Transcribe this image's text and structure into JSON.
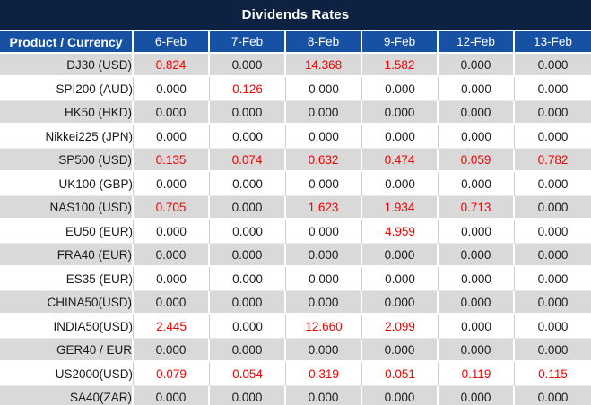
{
  "title_bar": {
    "title": "Dividends Rates"
  },
  "chart_data": {
    "type": "table",
    "title": "Dividends Rates",
    "columns": [
      "Product / Currency",
      "6-Feb",
      "7-Feb",
      "8-Feb",
      "9-Feb",
      "12-Feb",
      "13-Feb"
    ],
    "rows": [
      {
        "product": "DJ30 (USD)",
        "values": [
          "0.824",
          "0.000",
          "14.368",
          "1.582",
          "0.000",
          "0.000"
        ]
      },
      {
        "product": "SPI200 (AUD)",
        "values": [
          "0.000",
          "0.126",
          "0.000",
          "0.000",
          "0.000",
          "0.000"
        ]
      },
      {
        "product": "HK50 (HKD)",
        "values": [
          "0.000",
          "0.000",
          "0.000",
          "0.000",
          "0.000",
          "0.000"
        ]
      },
      {
        "product": "Nikkei225 (JPN)",
        "values": [
          "0.000",
          "0.000",
          "0.000",
          "0.000",
          "0.000",
          "0.000"
        ]
      },
      {
        "product": "SP500 (USD)",
        "values": [
          "0.135",
          "0.074",
          "0.632",
          "0.474",
          "0.059",
          "0.782"
        ]
      },
      {
        "product": "UK100 (GBP)",
        "values": [
          "0.000",
          "0.000",
          "0.000",
          "0.000",
          "0.000",
          "0.000"
        ]
      },
      {
        "product": "NAS100 (USD)",
        "values": [
          "0.705",
          "0.000",
          "1.623",
          "1.934",
          "0.713",
          "0.000"
        ]
      },
      {
        "product": "EU50 (EUR)",
        "values": [
          "0.000",
          "0.000",
          "0.000",
          "4.959",
          "0.000",
          "0.000"
        ]
      },
      {
        "product": "FRA40 (EUR)",
        "values": [
          "0.000",
          "0.000",
          "0.000",
          "0.000",
          "0.000",
          "0.000"
        ]
      },
      {
        "product": "ES35 (EUR)",
        "values": [
          "0.000",
          "0.000",
          "0.000",
          "0.000",
          "0.000",
          "0.000"
        ]
      },
      {
        "product": "CHINA50(USD)",
        "values": [
          "0.000",
          "0.000",
          "0.000",
          "0.000",
          "0.000",
          "0.000"
        ]
      },
      {
        "product": "INDIA50(USD)",
        "values": [
          "2.445",
          "0.000",
          "12.660",
          "2.099",
          "0.000",
          "0.000"
        ]
      },
      {
        "product": "GER40 / EUR",
        "values": [
          "0.000",
          "0.000",
          "0.000",
          "0.000",
          "0.000",
          "0.000"
        ]
      },
      {
        "product": "US2000(USD)",
        "values": [
          "0.079",
          "0.054",
          "0.319",
          "0.051",
          "0.119",
          "0.115"
        ]
      },
      {
        "product": "SA40(ZAR)",
        "values": [
          "0.000",
          "0.000",
          "0.000",
          "0.000",
          "0.000",
          "0.000"
        ]
      }
    ],
    "layout_hints": {
      "value_color_rule": "non-zero values rendered red, zeros rendered black",
      "row_striping": "odd rows gray, even rows white"
    }
  },
  "colors": {
    "title_bg": "#0d2242",
    "header_bg": "#1651a3",
    "row_gray_bg": "#d9d9d9",
    "row_white_bg": "#ffffff",
    "value_red": "#f70000",
    "value_black": "#1a1a1a"
  }
}
